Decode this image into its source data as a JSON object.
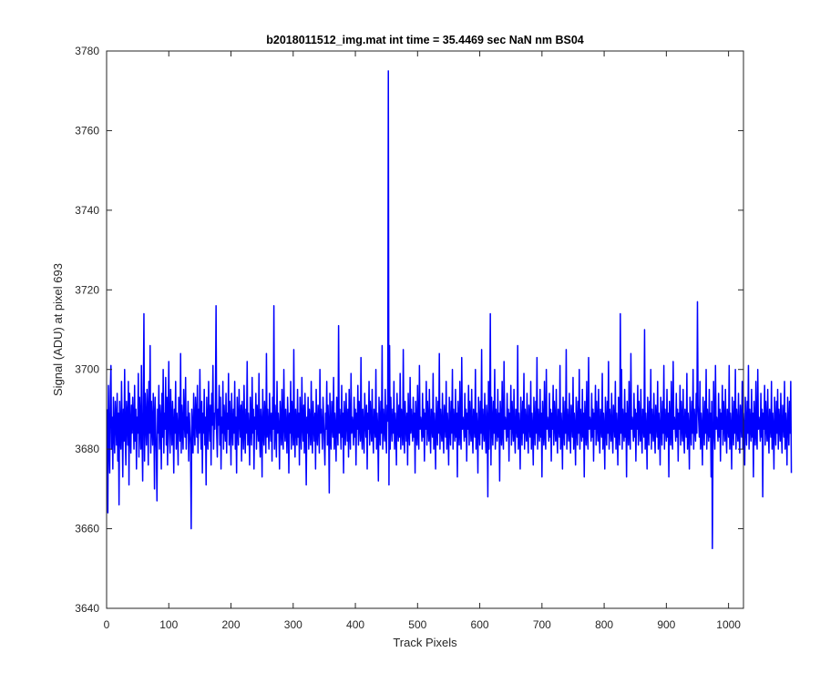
{
  "chart_data": {
    "type": "line",
    "title": "b2018011512_img.mat int time = 35.4469 sec  NaN nm BS04",
    "xlabel": "Track Pixels",
    "ylabel": "Signal (ADU) at pixel 693",
    "xlim": [
      0,
      1024
    ],
    "ylim": [
      3640,
      3780
    ],
    "xticks": [
      0,
      100,
      200,
      300,
      400,
      500,
      600,
      700,
      800,
      900,
      1000
    ],
    "yticks": [
      3640,
      3660,
      3680,
      3700,
      3720,
      3740,
      3760,
      3780
    ],
    "grid": false,
    "series": [
      {
        "color": "#0000ff",
        "x_start": 1,
        "x_step": 1,
        "values": [
          3690,
          3664,
          3696,
          3682,
          3674,
          3695,
          3701,
          3680,
          3688,
          3675,
          3693,
          3685,
          3679,
          3692,
          3687,
          3681,
          3694,
          3677,
          3689,
          3666,
          3692,
          3684,
          3680,
          3697,
          3686,
          3673,
          3690,
          3682,
          3700,
          3683,
          3676,
          3692,
          3688,
          3681,
          3697,
          3671,
          3694,
          3685,
          3679,
          3691,
          3684,
          3693,
          3687,
          3680,
          3696,
          3682,
          3690,
          3675,
          3688,
          3684,
          3699,
          3678,
          3693,
          3686,
          3680,
          3701,
          3683,
          3672,
          3691,
          3714,
          3677,
          3694,
          3687,
          3681,
          3695,
          3689,
          3676,
          3697,
          3684,
          3706,
          3679,
          3692,
          3686,
          3681,
          3694,
          3688,
          3670,
          3693,
          3685,
          3679,
          3667,
          3690,
          3684,
          3696,
          3680,
          3691,
          3687,
          3675,
          3694,
          3683,
          3700,
          3679,
          3689,
          3685,
          3698,
          3681,
          3693,
          3676,
          3688,
          3702,
          3684,
          3679,
          3695,
          3687,
          3681,
          3692,
          3686,
          3674,
          3690,
          3684,
          3697,
          3680,
          3689,
          3685,
          3676,
          3693,
          3688,
          3682,
          3704,
          3679,
          3691,
          3686,
          3680,
          3695,
          3687,
          3683,
          3698,
          3680,
          3688,
          3684,
          3692,
          3677,
          3689,
          3685,
          3681,
          3660,
          3690,
          3684,
          3679,
          3694,
          3686,
          3681,
          3693,
          3688,
          3683,
          3696,
          3679,
          3690,
          3684,
          3700,
          3686,
          3680,
          3692,
          3674,
          3689,
          3684,
          3695,
          3681,
          3688,
          3671,
          3693,
          3685,
          3680,
          3697,
          3687,
          3682,
          3691,
          3676,
          3694,
          3686,
          3701,
          3680,
          3689,
          3685,
          3692,
          3716,
          3684,
          3678,
          3690,
          3686,
          3696,
          3681,
          3693,
          3675,
          3688,
          3684,
          3697,
          3680,
          3691,
          3686,
          3682,
          3694,
          3679,
          3689,
          3685,
          3699,
          3681,
          3692,
          3687,
          3676,
          3694,
          3686,
          3681,
          3690,
          3684,
          3697,
          3680,
          3688,
          3674,
          3693,
          3686,
          3681,
          3695,
          3687,
          3683,
          3691,
          3677,
          3692,
          3686,
          3680,
          3696,
          3685,
          3679,
          3690,
          3684,
          3702,
          3681,
          3689,
          3685,
          3676,
          3693,
          3686,
          3681,
          3698,
          3684,
          3690,
          3675,
          3688,
          3685,
          3694,
          3680,
          3691,
          3686,
          3682,
          3699,
          3683,
          3678,
          3690,
          3686,
          3673,
          3695,
          3684,
          3681,
          3692,
          3687,
          3679,
          3704,
          3683,
          3690,
          3685,
          3680,
          3694,
          3686,
          3682,
          3689,
          3677,
          3693,
          3685,
          3716,
          3680,
          3691,
          3686,
          3678,
          3697,
          3684,
          3689,
          3685,
          3675,
          3692,
          3687,
          3681,
          3695,
          3684,
          3680,
          3700,
          3686,
          3682,
          3690,
          3685,
          3679,
          3693,
          3687,
          3674,
          3689,
          3684,
          3697,
          3680,
          3692,
          3686,
          3681,
          3705,
          3684,
          3678,
          3690,
          3686,
          3681,
          3695,
          3683,
          3689,
          3676,
          3693,
          3685,
          3680,
          3698,
          3686,
          3682,
          3691,
          3679,
          3694,
          3685,
          3671,
          3688,
          3684,
          3693,
          3680,
          3690,
          3686,
          3681,
          3697,
          3684,
          3679,
          3692,
          3686,
          3682,
          3689,
          3675,
          3695,
          3684,
          3681,
          3691,
          3687,
          3679,
          3700,
          3684,
          3690,
          3685,
          3680,
          3693,
          3687,
          3682,
          3676,
          3689,
          3685,
          3697,
          3681,
          3691,
          3686,
          3669,
          3694,
          3684,
          3680,
          3692,
          3686,
          3683,
          3698,
          3680,
          3689,
          3685,
          3677,
          3693,
          3686,
          3681,
          3711,
          3684,
          3690,
          3685,
          3680,
          3696,
          3683,
          3689,
          3674,
          3692,
          3686,
          3681,
          3694,
          3687,
          3682,
          3690,
          3678,
          3695,
          3685,
          3680,
          3699,
          3684,
          3688,
          3686,
          3681,
          3693,
          3683,
          3690,
          3676,
          3689,
          3685,
          3696,
          3681,
          3692,
          3686,
          3682,
          3703,
          3684,
          3680,
          3690,
          3685,
          3679,
          3694,
          3687,
          3683,
          3691,
          3675,
          3689,
          3685,
          3697,
          3681,
          3692,
          3686,
          3682,
          3695,
          3684,
          3679,
          3690,
          3686,
          3683,
          3700,
          3680,
          3689,
          3685,
          3672,
          3693,
          3686,
          3681,
          3692,
          3684,
          3706,
          3680,
          3690,
          3686,
          3682,
          3695,
          3684,
          3679,
          3691,
          3687,
          3775,
          3671,
          3706,
          3680,
          3693,
          3686,
          3682,
          3690,
          3684,
          3697,
          3680,
          3689,
          3685,
          3676,
          3694,
          3686,
          3682,
          3691,
          3683,
          3699,
          3680,
          3690,
          3686,
          3681,
          3705,
          3684,
          3679,
          3692,
          3686,
          3682,
          3689,
          3676,
          3694,
          3685,
          3681,
          3698,
          3684,
          3690,
          3686,
          3682,
          3693,
          3683,
          3689,
          3674,
          3692,
          3686,
          3681,
          3696,
          3684,
          3680,
          3701,
          3685,
          3688,
          3686,
          3682,
          3694,
          3683,
          3690,
          3677,
          3689,
          3685,
          3697,
          3681,
          3692,
          3686,
          3682,
          3695,
          3684,
          3679,
          3690,
          3686,
          3683,
          3699,
          3680,
          3689,
          3685,
          3675,
          3693,
          3686,
          3681,
          3692,
          3684,
          3704,
          3680,
          3690,
          3686,
          3682,
          3694,
          3684,
          3679,
          3691,
          3687,
          3683,
          3697,
          3680,
          3689,
          3685,
          3676,
          3693,
          3686,
          3681,
          3692,
          3684,
          3700,
          3680,
          3690,
          3686,
          3682,
          3695,
          3683,
          3689,
          3673,
          3692,
          3686,
          3681,
          3697,
          3684,
          3680,
          3703,
          3685,
          3688,
          3686,
          3682,
          3694,
          3683,
          3690,
          3677,
          3689,
          3685,
          3696,
          3681,
          3692,
          3686,
          3682,
          3695,
          3684,
          3679,
          3690,
          3686,
          3683,
          3700,
          3680,
          3689,
          3685,
          3674,
          3693,
          3686,
          3681,
          3692,
          3684,
          3705,
          3680,
          3690,
          3686,
          3682,
          3694,
          3684,
          3679,
          3691,
          3687,
          3668,
          3697,
          3680,
          3689,
          3714,
          3676,
          3693,
          3686,
          3681,
          3692,
          3684,
          3700,
          3680,
          3690,
          3686,
          3682,
          3695,
          3683,
          3689,
          3672,
          3692,
          3686,
          3681,
          3697,
          3684,
          3680,
          3702,
          3685,
          3688,
          3686,
          3682,
          3694,
          3683,
          3690,
          3677,
          3689,
          3685,
          3696,
          3681,
          3692,
          3686,
          3682,
          3695,
          3684,
          3679,
          3690,
          3686,
          3683,
          3706,
          3680,
          3689,
          3685,
          3675,
          3693,
          3686,
          3681,
          3692,
          3684,
          3699,
          3680,
          3690,
          3686,
          3682,
          3694,
          3684,
          3679,
          3691,
          3687,
          3683,
          3697,
          3680,
          3689,
          3685,
          3676,
          3693,
          3686,
          3681,
          3692,
          3684,
          3703,
          3680,
          3690,
          3686,
          3682,
          3695,
          3683,
          3689,
          3673,
          3692,
          3686,
          3681,
          3697,
          3684,
          3680,
          3700,
          3685,
          3688,
          3686,
          3682,
          3694,
          3683,
          3690,
          3677,
          3689,
          3685,
          3696,
          3681,
          3692,
          3686,
          3682,
          3695,
          3684,
          3679,
          3690,
          3686,
          3683,
          3701,
          3680,
          3689,
          3685,
          3675,
          3693,
          3686,
          3681,
          3692,
          3684,
          3705,
          3680,
          3690,
          3686,
          3682,
          3694,
          3684,
          3679,
          3691,
          3687,
          3683,
          3698,
          3680,
          3689,
          3685,
          3676,
          3693,
          3686,
          3681,
          3692,
          3684,
          3700,
          3680,
          3690,
          3686,
          3682,
          3695,
          3683,
          3689,
          3673,
          3692,
          3686,
          3681,
          3697,
          3684,
          3680,
          3703,
          3685,
          3688,
          3686,
          3682,
          3694,
          3683,
          3690,
          3677,
          3689,
          3685,
          3696,
          3681,
          3692,
          3686,
          3682,
          3695,
          3684,
          3679,
          3690,
          3686,
          3683,
          3699,
          3680,
          3689,
          3685,
          3675,
          3693,
          3686,
          3681,
          3692,
          3684,
          3702,
          3680,
          3690,
          3686,
          3682,
          3694,
          3684,
          3679,
          3691,
          3687,
          3683,
          3697,
          3680,
          3689,
          3685,
          3676,
          3693,
          3686,
          3681,
          3714,
          3684,
          3700,
          3680,
          3690,
          3686,
          3682,
          3695,
          3683,
          3689,
          3673,
          3692,
          3686,
          3681,
          3697,
          3684,
          3680,
          3704,
          3685,
          3688,
          3686,
          3682,
          3694,
          3683,
          3690,
          3677,
          3689,
          3685,
          3696,
          3681,
          3692,
          3686,
          3682,
          3695,
          3684,
          3679,
          3690,
          3686,
          3683,
          3710,
          3680,
          3689,
          3685,
          3675,
          3693,
          3686,
          3681,
          3692,
          3684,
          3700,
          3680,
          3690,
          3686,
          3682,
          3694,
          3684,
          3679,
          3691,
          3687,
          3683,
          3697,
          3680,
          3689,
          3685,
          3676,
          3693,
          3686,
          3681,
          3692,
          3684,
          3701,
          3680,
          3690,
          3686,
          3682,
          3695,
          3683,
          3689,
          3673,
          3692,
          3686,
          3681,
          3697,
          3684,
          3680,
          3702,
          3685,
          3688,
          3686,
          3682,
          3694,
          3683,
          3690,
          3677,
          3689,
          3685,
          3696,
          3681,
          3692,
          3686,
          3682,
          3695,
          3684,
          3679,
          3690,
          3686,
          3683,
          3699,
          3680,
          3689,
          3685,
          3675,
          3693,
          3686,
          3681,
          3692,
          3684,
          3700,
          3680,
          3690,
          3686,
          3682,
          3694,
          3684,
          3717,
          3691,
          3687,
          3683,
          3697,
          3680,
          3689,
          3685,
          3676,
          3693,
          3686,
          3681,
          3692,
          3684,
          3700,
          3680,
          3690,
          3686,
          3682,
          3695,
          3683,
          3689,
          3673,
          3692,
          3655,
          3681,
          3697,
          3684,
          3680,
          3701,
          3685,
          3688,
          3686,
          3682,
          3694,
          3683,
          3690,
          3677,
          3689,
          3685,
          3696,
          3681,
          3692,
          3686,
          3682,
          3695,
          3684,
          3679,
          3690,
          3686,
          3683,
          3701,
          3680,
          3689,
          3685,
          3675,
          3693,
          3686,
          3681,
          3692,
          3684,
          3700,
          3680,
          3690,
          3686,
          3682,
          3694,
          3684,
          3679,
          3691,
          3687,
          3683,
          3697,
          3680,
          3689,
          3685,
          3676,
          3693,
          3686,
          3681,
          3692,
          3684,
          3701,
          3680,
          3690,
          3686,
          3682,
          3695,
          3683,
          3689,
          3673,
          3692,
          3686,
          3681,
          3697,
          3684,
          3680,
          3700,
          3685,
          3688,
          3686,
          3682,
          3694,
          3683,
          3690,
          3668,
          3689,
          3685,
          3696,
          3681,
          3692,
          3686,
          3682,
          3695,
          3684,
          3679,
          3690,
          3686,
          3683,
          3697,
          3680,
          3689,
          3685,
          3675,
          3693,
          3686,
          3681,
          3692,
          3684,
          3695,
          3680,
          3690,
          3686,
          3682,
          3694,
          3684,
          3679,
          3691,
          3687,
          3683,
          3697,
          3680,
          3689,
          3685,
          3676,
          3693,
          3686,
          3681,
          3692,
          3684,
          3697,
          3674
        ]
      }
    ]
  }
}
